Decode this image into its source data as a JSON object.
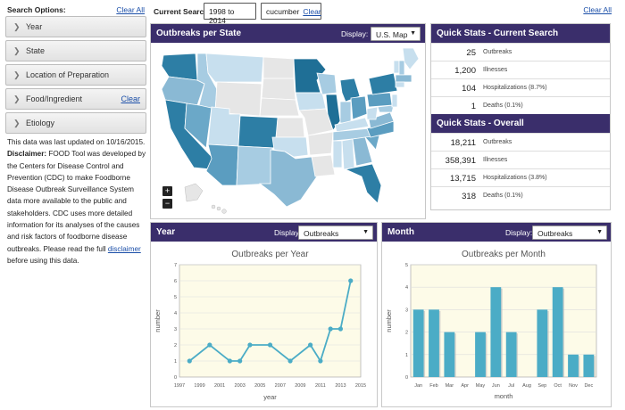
{
  "sidebar": {
    "title": "Search Options:",
    "clear_all": "Clear All",
    "items": [
      {
        "label": "Year",
        "clear": ""
      },
      {
        "label": "State",
        "clear": ""
      },
      {
        "label": "Location of Preparation",
        "clear": ""
      },
      {
        "label": "Food/Ingredient",
        "clear": "Clear"
      },
      {
        "label": "Etiology",
        "clear": ""
      }
    ],
    "info": {
      "updated": "This data was last updated on 10/16/2015.",
      "disclaimer_label": "Disclaimer:",
      "disclaimer_text": " FOOD Tool was developed by the Centers for Disease Control and Prevention (CDC) to make Foodborne Disease Outbreak Surveillance System data more available to the public and stakeholders. CDC uses more detailed information for its analyses of the causes and risk factors of foodborne disease outbreaks. Please read the full ",
      "link": "disclaimer",
      "tail": " before using this data."
    }
  },
  "search": {
    "label": "Current Search:",
    "years": "1998 to 2014",
    "food": "cucumber",
    "food_clear": "Clear",
    "clear_all": "Clear All"
  },
  "map_panel": {
    "title": "Outbreaks per State",
    "display_label": "Display:",
    "display_value": "U.S. Map",
    "zoom_in": "+",
    "zoom_out": "−"
  },
  "stats_current": {
    "title": "Quick Stats - Current Search",
    "rows": [
      {
        "value": "25",
        "label": "Outbreaks"
      },
      {
        "value": "1,200",
        "label": "Illnesses"
      },
      {
        "value": "104",
        "label": "Hospitalizations (8.7%)"
      },
      {
        "value": "1",
        "label": "Deaths (0.1%)"
      }
    ]
  },
  "stats_overall": {
    "title": "Quick Stats - Overall",
    "rows": [
      {
        "value": "18,211",
        "label": "Outbreaks"
      },
      {
        "value": "358,391",
        "label": "Illnesses"
      },
      {
        "value": "13,715",
        "label": "Hospitalizations (3.8%)"
      },
      {
        "value": "318",
        "label": "Deaths (0.1%)"
      }
    ]
  },
  "year_panel": {
    "title": "Year",
    "display_label": "Display:",
    "display_value": "Outbreaks"
  },
  "month_panel": {
    "title": "Month",
    "display_label": "Display:",
    "display_value": "Outbreaks"
  },
  "colors": {
    "header": "#3a2e6b",
    "series": "#4bacc6",
    "plot_bg": "#fdfbe8"
  },
  "chart_data": [
    {
      "type": "line",
      "title": "Outbreaks per Year",
      "xlabel": "year",
      "ylabel": "number",
      "x": [
        1998,
        2000,
        2002,
        2003,
        2004,
        2006,
        2008,
        2010,
        2011,
        2012,
        2013,
        2014
      ],
      "values": [
        1,
        2,
        1,
        1,
        2,
        2,
        1,
        2,
        1,
        3,
        3,
        6
      ],
      "xticks": [
        "1997",
        "1999",
        "2001",
        "2003",
        "2005",
        "2007",
        "2009",
        "2011",
        "2013",
        "2015"
      ],
      "xlim": [
        1997,
        2015
      ],
      "ylim": [
        0,
        7
      ],
      "yticks": [
        "0",
        "1",
        "2",
        "3",
        "4",
        "5",
        "6",
        "7"
      ],
      "grid": true
    },
    {
      "type": "bar",
      "title": "Outbreaks per Month",
      "xlabel": "month",
      "ylabel": "number",
      "categories": [
        "Jan",
        "Feb",
        "Mar",
        "Apr",
        "May",
        "Jun",
        "Jul",
        "Aug",
        "Sep",
        "Oct",
        "Nov",
        "Dec"
      ],
      "values": [
        3,
        3,
        2,
        0,
        2,
        4,
        2,
        0,
        3,
        4,
        1,
        1
      ],
      "ylim": [
        0,
        5
      ],
      "yticks": [
        "0",
        "1",
        "2",
        "3",
        "4",
        "5"
      ],
      "grid": true
    }
  ]
}
